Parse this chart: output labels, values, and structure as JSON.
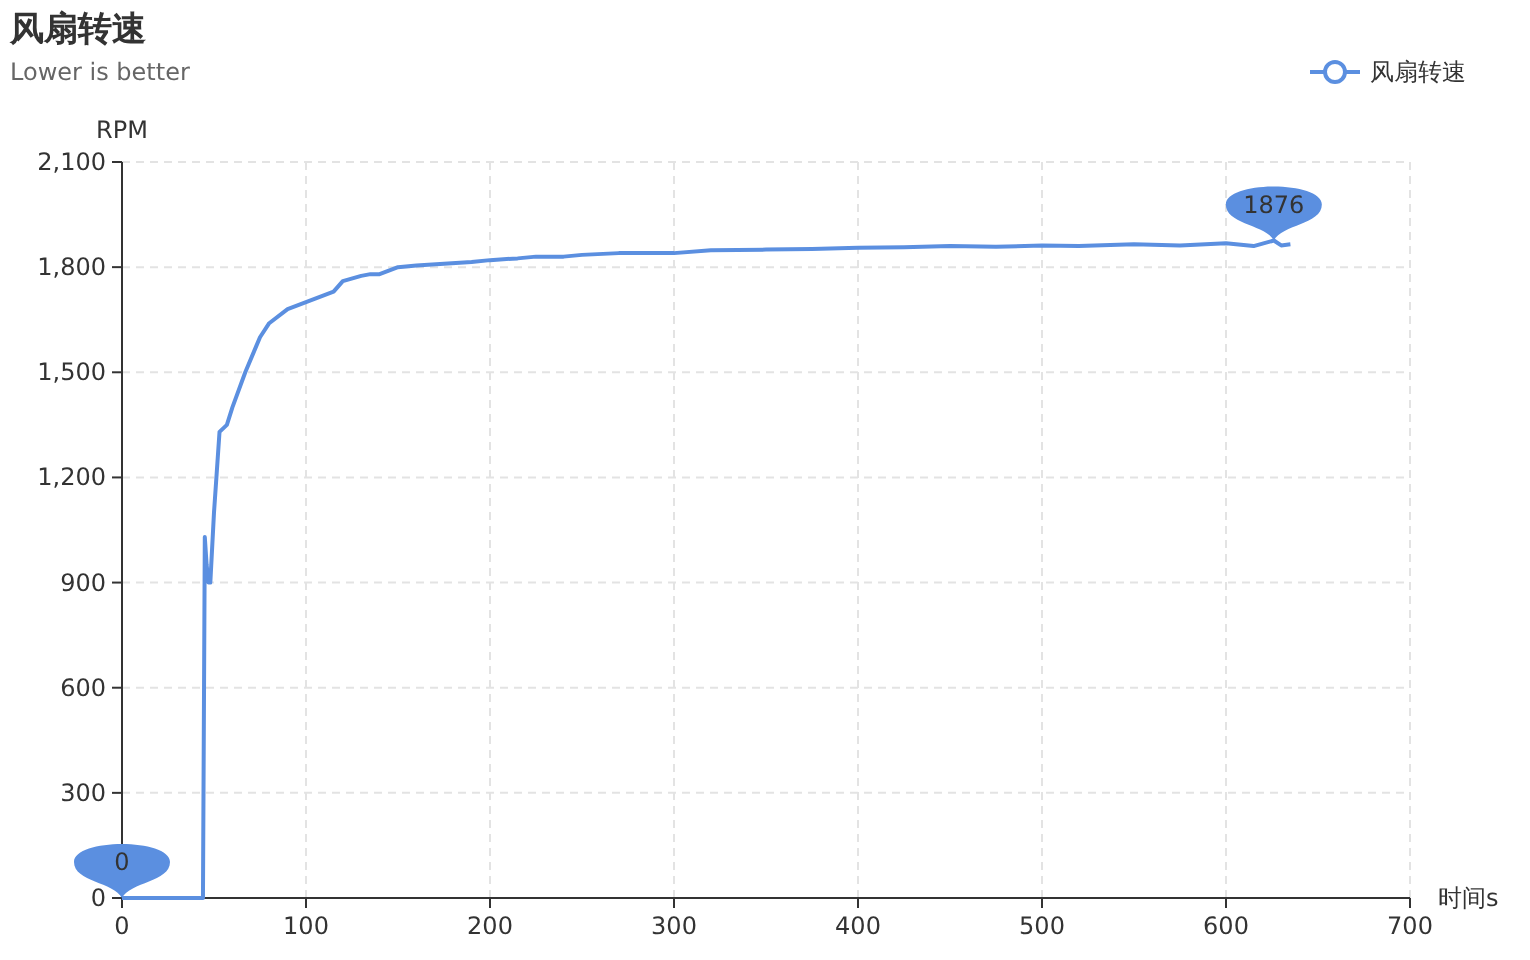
{
  "chart_data": {
    "type": "line",
    "title": "风扇转速",
    "subtitle": "Lower is better",
    "xlabel": "时间s",
    "ylabel": "RPM",
    "xlim": [
      0,
      700
    ],
    "xticks": [
      0,
      100,
      200,
      300,
      400,
      500,
      600,
      700
    ],
    "ylim": [
      0,
      2100
    ],
    "yticks": [
      {
        "value": 0,
        "label": "0"
      },
      {
        "value": 300,
        "label": "300"
      },
      {
        "value": 600,
        "label": "600"
      },
      {
        "value": 900,
        "label": "900"
      },
      {
        "value": 1200,
        "label": "1,200"
      },
      {
        "value": 1500,
        "label": "1,500"
      },
      {
        "value": 1800,
        "label": "1,800"
      },
      {
        "value": 2100,
        "label": "2,100"
      }
    ],
    "grid": true,
    "legend": "top right",
    "marker": "none",
    "line_style": "solid",
    "annotations": [
      {
        "text": "1876",
        "x": 626,
        "y": 1876
      },
      {
        "text": "0",
        "x": 0,
        "y": 0
      }
    ],
    "series": [
      {
        "name": "风扇转速",
        "color": "#5b8fe0",
        "x": [
          0,
          10,
          20,
          30,
          40,
          44,
          45,
          46,
          47,
          48,
          50,
          53,
          57,
          60,
          67,
          75,
          80,
          90,
          95,
          100,
          110,
          115,
          120,
          130,
          135,
          140,
          150,
          160,
          175,
          190,
          200,
          215,
          225,
          240,
          250,
          270,
          300,
          320,
          350,
          375,
          400,
          425,
          450,
          475,
          500,
          520,
          550,
          575,
          600,
          615,
          626,
          630,
          635
        ],
        "values": [
          0,
          0,
          0,
          0,
          0,
          0,
          1030,
          950,
          900,
          900,
          1100,
          1330,
          1350,
          1400,
          1500,
          1600,
          1640,
          1680,
          1690,
          1700,
          1720,
          1730,
          1760,
          1775,
          1780,
          1780,
          1800,
          1805,
          1810,
          1815,
          1820,
          1825,
          1830,
          1830,
          1835,
          1840,
          1840,
          1848,
          1850,
          1852,
          1855,
          1857,
          1860,
          1858,
          1862,
          1860,
          1865,
          1862,
          1868,
          1860,
          1876,
          1862,
          1865
        ]
      }
    ]
  }
}
